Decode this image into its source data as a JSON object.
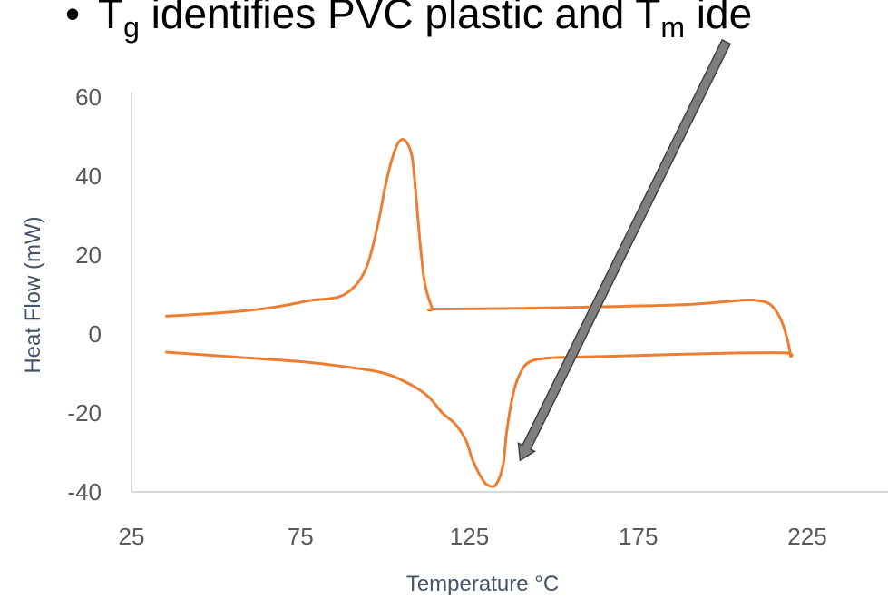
{
  "headline": {
    "bullet": "•",
    "t1": "T",
    "sub1": "g",
    "t2": " identifies PVC plastic and T",
    "sub2": "m",
    "t3": " ide"
  },
  "colors": {
    "series": "#ed7d31",
    "axis": "#d9d9d9",
    "tick_text": "#595959",
    "axis_title": "#44546a",
    "arrow_fill": "#7f7f7f",
    "arrow_stroke": "#404040"
  },
  "chart_data": {
    "type": "line",
    "title": "",
    "xlabel": "Temperature °C",
    "ylabel": "Heat Flow (mW)",
    "xlim": [
      25,
      250
    ],
    "ylim": [
      -40,
      60
    ],
    "xticks": [
      "25",
      "75",
      "125",
      "175",
      "225"
    ],
    "yticks": [
      "60",
      "40",
      "20",
      "0",
      "-20",
      "-40"
    ],
    "grid": false,
    "legend": "none",
    "series": [
      {
        "points": [
          [
            35,
            4.5
          ],
          [
            45,
            5
          ],
          [
            55,
            5.6
          ],
          [
            65,
            6.5
          ],
          [
            72,
            7.5
          ],
          [
            78,
            8.5
          ],
          [
            84,
            9
          ],
          [
            88,
            10
          ],
          [
            92,
            13
          ],
          [
            95,
            18
          ],
          [
            98,
            28
          ],
          [
            100,
            37
          ],
          [
            102,
            44
          ],
          [
            104,
            48.5
          ],
          [
            106,
            49
          ],
          [
            108,
            45
          ],
          [
            109,
            37
          ],
          [
            110,
            27
          ],
          [
            111,
            18
          ],
          [
            112,
            12
          ],
          [
            114,
            6.5
          ],
          [
            115,
            6.3
          ],
          [
            140,
            6.5
          ],
          [
            170,
            7
          ],
          [
            190,
            7.5
          ],
          [
            205,
            8.5
          ],
          [
            210,
            8.5
          ],
          [
            214,
            7.5
          ],
          [
            217,
            4
          ],
          [
            219,
            -1
          ],
          [
            220,
            -5.5
          ],
          [
            219,
            -4.8
          ],
          [
            205,
            -4.8
          ],
          [
            185,
            -5.2
          ],
          [
            165,
            -5.7
          ],
          [
            150,
            -6
          ],
          [
            143,
            -7
          ],
          [
            140,
            -10
          ],
          [
            138,
            -15
          ],
          [
            136,
            -25
          ],
          [
            135,
            -33
          ],
          [
            133,
            -38
          ],
          [
            131,
            -38.5
          ],
          [
            129,
            -37
          ],
          [
            126,
            -32
          ],
          [
            124,
            -27
          ],
          [
            121,
            -23
          ],
          [
            117,
            -20
          ],
          [
            113,
            -16
          ],
          [
            108,
            -13
          ],
          [
            100,
            -10
          ],
          [
            90,
            -8.5
          ],
          [
            75,
            -7
          ],
          [
            55,
            -5.8
          ],
          [
            35,
            -4.6
          ]
        ]
      }
    ],
    "annotation": {
      "type": "arrow",
      "from": [
        201,
        74
      ],
      "to": [
        140,
        -32
      ]
    }
  }
}
